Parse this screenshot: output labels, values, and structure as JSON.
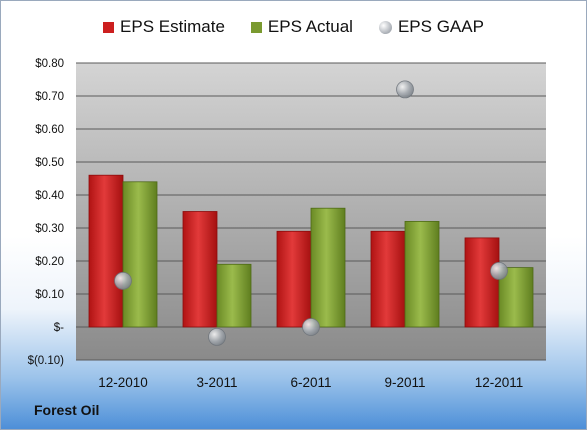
{
  "legend": {
    "estimate_label": "EPS Estimate",
    "actual_label": "EPS Actual",
    "gaap_label": "EPS GAAP"
  },
  "footer": {
    "company": "Forest Oil"
  },
  "colors": {
    "estimate": "#cc1f1f",
    "actual": "#7a9a30",
    "gaap": "#a9aeb5",
    "plot_bg_top": "#cfcfcf",
    "plot_bg_bottom": "#8a8a8a"
  },
  "chart_data": {
    "type": "bar",
    "categories": [
      "12-2010",
      "3-2011",
      "6-2011",
      "9-2011",
      "12-2011"
    ],
    "series": [
      {
        "name": "EPS Estimate",
        "type": "bar",
        "values": [
          0.46,
          0.35,
          0.29,
          0.29,
          0.27
        ]
      },
      {
        "name": "EPS Actual",
        "type": "bar",
        "values": [
          0.44,
          0.19,
          0.36,
          0.32,
          0.18
        ]
      },
      {
        "name": "EPS GAAP",
        "type": "scatter",
        "values": [
          0.14,
          -0.03,
          0.0,
          0.72,
          0.17
        ]
      }
    ],
    "ylim": [
      -0.1,
      0.8
    ],
    "yticks": [
      -0.1,
      0.0,
      0.1,
      0.2,
      0.3,
      0.4,
      0.5,
      0.6,
      0.7,
      0.8
    ],
    "ytick_labels": [
      "$(0.10)",
      "$-",
      "$0.10",
      "$0.20",
      "$0.30",
      "$0.40",
      "$0.50",
      "$0.60",
      "$0.70",
      "$0.80"
    ],
    "grid": true,
    "legend_position": "top"
  }
}
